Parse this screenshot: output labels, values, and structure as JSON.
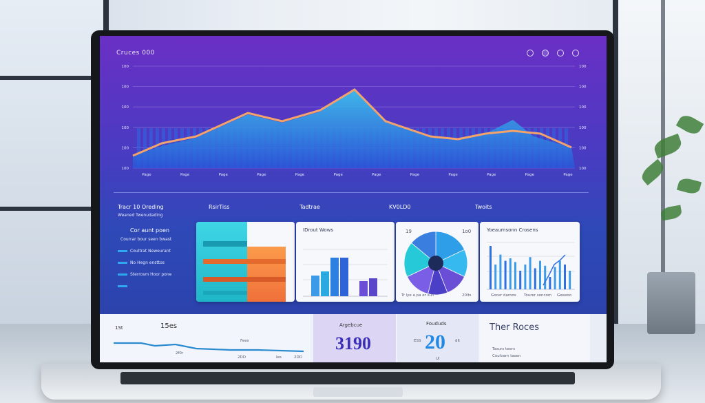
{
  "app": {
    "title": "Cruces 000"
  },
  "toolbar": {
    "icons": [
      "settings-icon",
      "user-icon",
      "globe-icon",
      "bell-icon"
    ]
  },
  "main_chart": {
    "y_ticks_left": [
      "100",
      "100",
      "100",
      "100",
      "100",
      "100"
    ],
    "y_ticks_right": [
      "100",
      "100",
      "100",
      "100",
      "100",
      "100"
    ],
    "x_ticks": [
      "Page",
      "Page",
      "Page",
      "Page",
      "Page",
      "Page",
      "Page",
      "Page",
      "Page",
      "Page",
      "Page",
      "Page"
    ]
  },
  "left_panel": {
    "title": "Tracr 10 Oreding",
    "subtitle": "Weaned Twenudading",
    "section": "Cor aunt poen",
    "items": [
      "Courrar bour seen bwast",
      "Coultrat Neweurant",
      "No Hegn ensttos",
      "Sterrosm Hoor pone"
    ]
  },
  "section_headers": [
    "RsirTiss",
    "Tadtrae",
    "KV0LD0",
    "Twoits"
  ],
  "cards": {
    "card2_title": "IDrout Wows",
    "card3_label_left": "19",
    "card3_label_right": "1o0",
    "card3_bottom": "Tr lye a pa er sun",
    "card3_bottom_right": "20lts",
    "card4_title": "Yoeaumsonn Crosens",
    "card4_footer": [
      "Gocer daroos",
      "Tourer soncom",
      "Geeeoo"
    ]
  },
  "bottom": {
    "cell1_label": "1St",
    "cell1_value": "15es",
    "cell1_sub1": "Fees",
    "cell1_sub2": "2f0r",
    "cell1_sub3": "2DD",
    "cell1_sub4": "Ies",
    "cell2_label": "Argebcue",
    "cell2_value": "3190",
    "cell3_label": "Foududs",
    "cell3_value": "20",
    "cell3_prefix": "ESS",
    "cell3_suffix": "dlt",
    "cell3_sub": "Ui",
    "cell4_title": "Ther Roces",
    "cell4_items": [
      "Tasurs teers",
      "Coulvarn tasen"
    ]
  },
  "colors": {
    "screen_top": "#6a2fc4",
    "screen_bottom": "#2a3fa6",
    "area_fill": "#2f8ff0",
    "line_orange": "#f4a36a",
    "cyan": "#26c9d8",
    "orange": "#f58a3c",
    "accent_blue": "#2f6fe0",
    "accent_purple": "#6a4fd6"
  }
}
